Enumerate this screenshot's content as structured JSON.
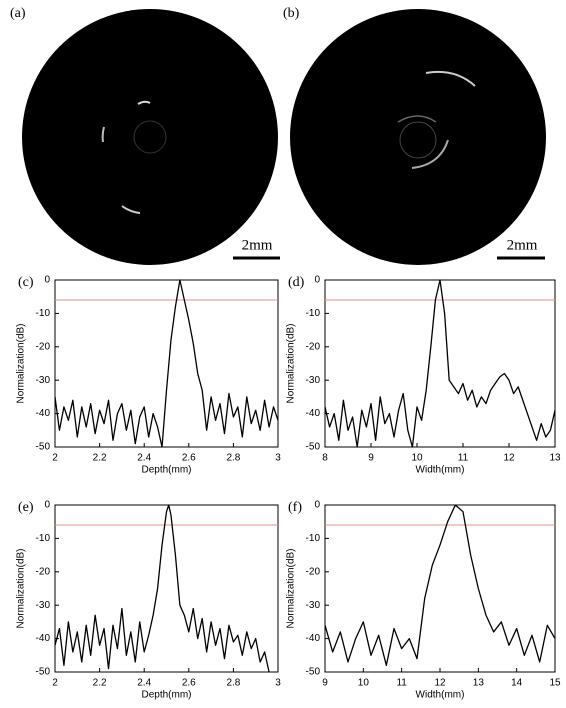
{
  "figure": {
    "images": [
      {
        "label": "(a)",
        "scale_bar": "2mm"
      },
      {
        "label": "(b)",
        "scale_bar": "2mm"
      }
    ]
  },
  "chart_data": [
    {
      "type": "line",
      "label": "(c)",
      "xlabel": "Depth(mm)",
      "ylabel": "Normalization(dB)",
      "color": "#000000",
      "x": [
        2.0,
        2.02,
        2.04,
        2.06,
        2.08,
        2.1,
        2.12,
        2.14,
        2.16,
        2.18,
        2.2,
        2.22,
        2.24,
        2.26,
        2.28,
        2.3,
        2.32,
        2.34,
        2.36,
        2.38,
        2.4,
        2.42,
        2.44,
        2.46,
        2.48,
        2.5,
        2.52,
        2.54,
        2.56,
        2.58,
        2.6,
        2.62,
        2.64,
        2.66,
        2.68,
        2.7,
        2.72,
        2.74,
        2.76,
        2.78,
        2.8,
        2.82,
        2.84,
        2.86,
        2.88,
        2.9,
        2.92,
        2.94,
        2.96,
        2.98,
        3.0
      ],
      "values": [
        -35,
        -45,
        -38,
        -42,
        -36,
        -47,
        -38,
        -44,
        -37,
        -46,
        -39,
        -43,
        -36,
        -48,
        -40,
        -37,
        -45,
        -39,
        -49,
        -41,
        -38,
        -47,
        -40,
        -44,
        -50,
        -33,
        -18,
        -8,
        0,
        -6,
        -12,
        -19,
        -28,
        -33,
        -45,
        -35,
        -42,
        -37,
        -46,
        -34,
        -41,
        -38,
        -47,
        -35,
        -43,
        -39,
        -45,
        -36,
        -44,
        -38,
        -42
      ],
      "xlim": [
        2,
        3
      ],
      "xticks": [
        2,
        2.2,
        2.4,
        2.6,
        2.8,
        3
      ],
      "ylim": [
        -50,
        0
      ],
      "yticks": [
        0,
        -10,
        -20,
        -30,
        -40,
        -50
      ],
      "reference_line": {
        "value": -6,
        "color": "#e09090"
      }
    },
    {
      "type": "line",
      "label": "(d)",
      "xlabel": "Width(mm)",
      "ylabel": "Normalization(dB)",
      "color": "#000000",
      "x": [
        8.0,
        8.1,
        8.2,
        8.3,
        8.4,
        8.5,
        8.6,
        8.7,
        8.8,
        8.9,
        9.0,
        9.1,
        9.2,
        9.3,
        9.4,
        9.5,
        9.6,
        9.7,
        9.8,
        9.9,
        10.0,
        10.1,
        10.2,
        10.3,
        10.4,
        10.5,
        10.6,
        10.7,
        10.8,
        10.9,
        11.0,
        11.1,
        11.2,
        11.3,
        11.4,
        11.5,
        11.6,
        11.7,
        11.8,
        11.9,
        12.0,
        12.1,
        12.2,
        12.3,
        12.4,
        12.5,
        12.6,
        12.7,
        12.8,
        12.9,
        13.0
      ],
      "values": [
        -38,
        -44,
        -40,
        -48,
        -36,
        -45,
        -41,
        -50,
        -39,
        -44,
        -37,
        -48,
        -35,
        -43,
        -40,
        -47,
        -39,
        -34,
        -45,
        -50,
        -38,
        -42,
        -33,
        -20,
        -6,
        0,
        -10,
        -30,
        -32,
        -34,
        -31,
        -36,
        -33,
        -38,
        -35,
        -37,
        -33,
        -31,
        -29,
        -28,
        -30,
        -34,
        -32,
        -36,
        -40,
        -44,
        -48,
        -43,
        -47,
        -45,
        -39
      ],
      "xlim": [
        8,
        13
      ],
      "xticks": [
        8,
        9,
        10,
        11,
        12,
        13
      ],
      "ylim": [
        -50,
        0
      ],
      "yticks": [
        0,
        -10,
        -20,
        -30,
        -40,
        -50
      ],
      "reference_line": {
        "value": -6,
        "color": "#e09090"
      }
    },
    {
      "type": "line",
      "label": "(e)",
      "xlabel": "Depth(mm)",
      "ylabel": "Normalization(dB)",
      "color": "#000000",
      "x": [
        2.0,
        2.02,
        2.04,
        2.06,
        2.08,
        2.1,
        2.12,
        2.14,
        2.16,
        2.18,
        2.2,
        2.22,
        2.24,
        2.26,
        2.28,
        2.3,
        2.32,
        2.34,
        2.36,
        2.38,
        2.4,
        2.42,
        2.44,
        2.46,
        2.48,
        2.5,
        2.51,
        2.52,
        2.54,
        2.56,
        2.58,
        2.6,
        2.62,
        2.64,
        2.66,
        2.68,
        2.7,
        2.72,
        2.74,
        2.76,
        2.78,
        2.8,
        2.82,
        2.84,
        2.86,
        2.88,
        2.9,
        2.92,
        2.94,
        2.96
      ],
      "values": [
        -42,
        -37,
        -48,
        -35,
        -44,
        -38,
        -47,
        -36,
        -45,
        -33,
        -42,
        -37,
        -49,
        -36,
        -43,
        -31,
        -45,
        -38,
        -47,
        -35,
        -44,
        -39,
        -33,
        -25,
        -12,
        -2,
        0,
        -3,
        -15,
        -30,
        -33,
        -38,
        -31,
        -40,
        -34,
        -44,
        -35,
        -42,
        -37,
        -46,
        -36,
        -41,
        -39,
        -45,
        -38,
        -43,
        -40,
        -47,
        -44,
        -50
      ],
      "xlim": [
        2,
        3
      ],
      "xticks": [
        2,
        2.2,
        2.4,
        2.6,
        2.8,
        3
      ],
      "ylim": [
        -50,
        0
      ],
      "yticks": [
        0,
        -10,
        -20,
        -30,
        -40,
        -50
      ],
      "reference_line": {
        "value": -6,
        "color": "#e09090"
      }
    },
    {
      "type": "line",
      "label": "(f)",
      "xlabel": "Width(mm)",
      "ylabel": "Normalization(dB)",
      "color": "#000000",
      "x": [
        9.0,
        9.2,
        9.4,
        9.6,
        9.8,
        10.0,
        10.2,
        10.4,
        10.6,
        10.8,
        11.0,
        11.2,
        11.4,
        11.6,
        11.8,
        12.0,
        12.2,
        12.4,
        12.6,
        12.8,
        13.0,
        13.2,
        13.4,
        13.6,
        13.8,
        14.0,
        14.2,
        14.4,
        14.6,
        14.8,
        15.0
      ],
      "values": [
        -36,
        -44,
        -38,
        -47,
        -40,
        -35,
        -45,
        -39,
        -48,
        -37,
        -43,
        -40,
        -46,
        -28,
        -18,
        -12,
        -5,
        0,
        -2,
        -15,
        -25,
        -33,
        -38,
        -35,
        -42,
        -37,
        -45,
        -39,
        -47,
        -36,
        -40
      ],
      "xlim": [
        9,
        15
      ],
      "xticks": [
        9,
        10,
        11,
        12,
        13,
        14,
        15
      ],
      "ylim": [
        -50,
        0
      ],
      "yticks": [
        0,
        -10,
        -20,
        -30,
        -40,
        -50
      ],
      "reference_line": {
        "value": -6,
        "color": "#e09090"
      }
    }
  ]
}
